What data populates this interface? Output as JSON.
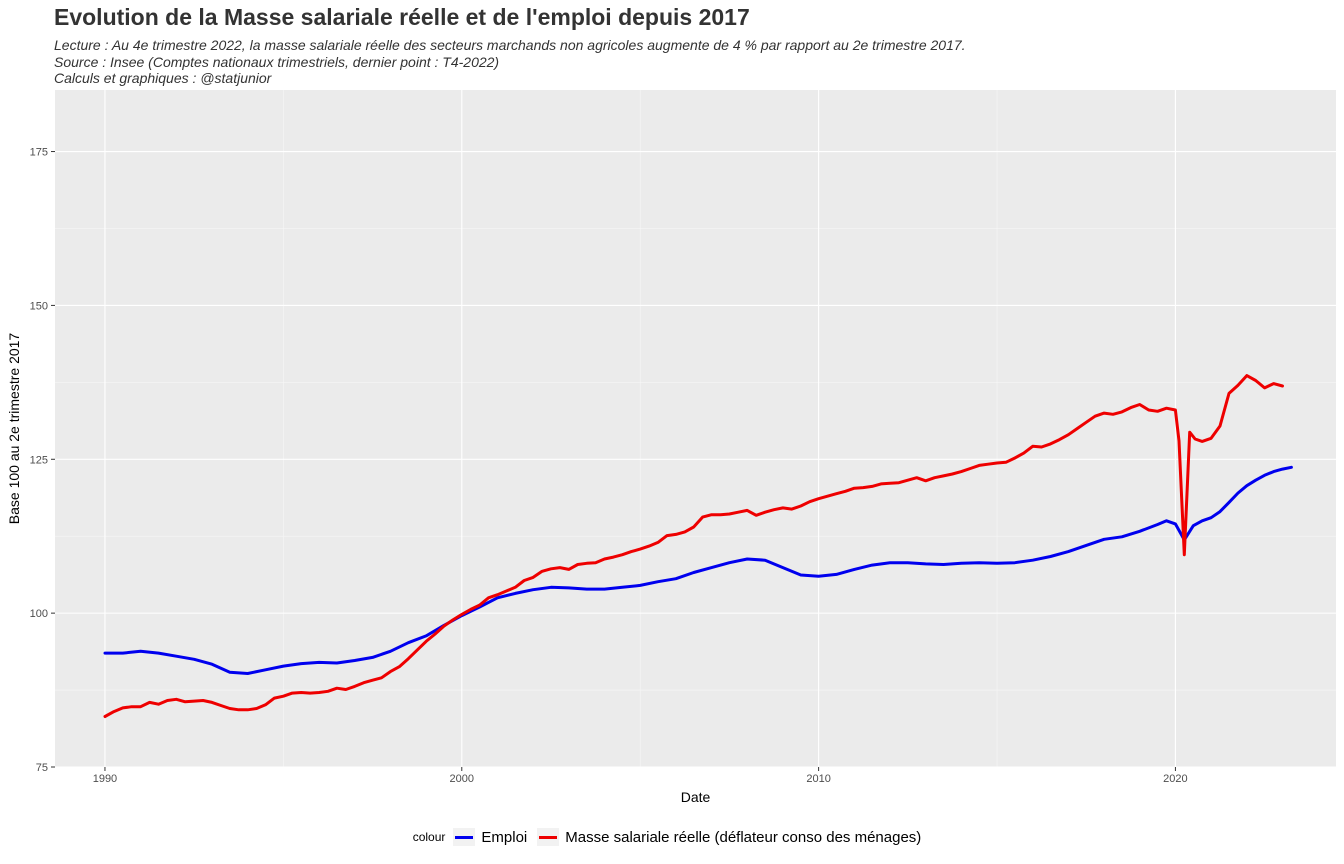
{
  "header": {
    "title": "Evolution de la Masse salariale réelle et de l'emploi depuis 2017",
    "lines": [
      "Lecture : Au 4e trimestre 2022, la masse salariale réelle des secteurs marchands non agricoles augmente de 4 % par rapport au 2e trimestre 2017.",
      "Source : Insee (Comptes nationaux trimestriels, dernier point : T4-2022)",
      "Calculs et graphiques : @statjunior"
    ]
  },
  "chart_data": {
    "type": "line",
    "xlabel": "Date",
    "ylabel": "Base 100 au 2e trimestre 2017",
    "xlim": [
      1988.6,
      2024.5
    ],
    "ylim": [
      75,
      185
    ],
    "x_ticks": [
      1990,
      2000,
      2010,
      2020
    ],
    "y_ticks": [
      75,
      100,
      125,
      150,
      175
    ],
    "grid": true,
    "legend_position": "bottom",
    "legend_title": "colour",
    "series": [
      {
        "name": "Emploi",
        "color": "#0000ee",
        "points": [
          [
            1990.0,
            93.5
          ],
          [
            1990.5,
            93.5
          ],
          [
            1991.0,
            93.8
          ],
          [
            1991.5,
            93.5
          ],
          [
            1992.0,
            93.0
          ],
          [
            1992.5,
            92.5
          ],
          [
            1993.0,
            91.7
          ],
          [
            1993.5,
            90.4
          ],
          [
            1994.0,
            90.2
          ],
          [
            1994.5,
            90.8
          ],
          [
            1995.0,
            91.4
          ],
          [
            1995.5,
            91.8
          ],
          [
            1996.0,
            92.0
          ],
          [
            1996.5,
            91.9
          ],
          [
            1997.0,
            92.3
          ],
          [
            1997.5,
            92.8
          ],
          [
            1998.0,
            93.8
          ],
          [
            1998.5,
            95.2
          ],
          [
            1999.0,
            96.3
          ],
          [
            1999.5,
            98.0
          ],
          [
            2000.0,
            99.6
          ],
          [
            2000.5,
            101.0
          ],
          [
            2001.0,
            102.5
          ],
          [
            2001.5,
            103.2
          ],
          [
            2002.0,
            103.8
          ],
          [
            2002.5,
            104.2
          ],
          [
            2003.0,
            104.1
          ],
          [
            2003.5,
            103.9
          ],
          [
            2004.0,
            103.9
          ],
          [
            2004.5,
            104.2
          ],
          [
            2005.0,
            104.5
          ],
          [
            2005.5,
            105.1
          ],
          [
            2006.0,
            105.6
          ],
          [
            2006.5,
            106.6
          ],
          [
            2007.0,
            107.4
          ],
          [
            2007.5,
            108.2
          ],
          [
            2008.0,
            108.8
          ],
          [
            2008.5,
            108.6
          ],
          [
            2009.0,
            107.4
          ],
          [
            2009.5,
            106.2
          ],
          [
            2010.0,
            106.0
          ],
          [
            2010.5,
            106.3
          ],
          [
            2011.0,
            107.1
          ],
          [
            2011.5,
            107.8
          ],
          [
            2012.0,
            108.2
          ],
          [
            2012.5,
            108.2
          ],
          [
            2013.0,
            108.0
          ],
          [
            2013.5,
            107.9
          ],
          [
            2014.0,
            108.1
          ],
          [
            2014.5,
            108.2
          ],
          [
            2015.0,
            108.1
          ],
          [
            2015.5,
            108.2
          ],
          [
            2016.0,
            108.6
          ],
          [
            2016.5,
            109.2
          ],
          [
            2017.0,
            110.0
          ],
          [
            2017.5,
            111.0
          ],
          [
            2018.0,
            112.0
          ],
          [
            2018.5,
            112.4
          ],
          [
            2019.0,
            113.3
          ],
          [
            2019.5,
            114.4
          ],
          [
            2019.75,
            115.0
          ],
          [
            2020.0,
            114.5
          ],
          [
            2020.25,
            111.9
          ],
          [
            2020.5,
            114.2
          ],
          [
            2020.75,
            115.0
          ],
          [
            2021.0,
            115.5
          ],
          [
            2021.25,
            116.5
          ],
          [
            2021.5,
            118.0
          ],
          [
            2021.75,
            119.5
          ],
          [
            2022.0,
            120.7
          ],
          [
            2022.25,
            121.6
          ],
          [
            2022.5,
            122.4
          ],
          [
            2022.75,
            123.0
          ],
          [
            2023.0,
            123.4
          ],
          [
            2023.25,
            123.7
          ]
        ]
      },
      {
        "name": "Masse salariale réelle (déflateur conso des ménages)",
        "color": "#ee0000",
        "points": [
          [
            1990.0,
            83.2
          ],
          [
            1990.25,
            84.0
          ],
          [
            1990.5,
            84.6
          ],
          [
            1990.75,
            84.8
          ],
          [
            1991.0,
            84.8
          ],
          [
            1991.25,
            85.5
          ],
          [
            1991.5,
            85.2
          ],
          [
            1991.75,
            85.8
          ],
          [
            1992.0,
            86.0
          ],
          [
            1992.25,
            85.6
          ],
          [
            1992.5,
            85.7
          ],
          [
            1992.75,
            85.8
          ],
          [
            1993.0,
            85.5
          ],
          [
            1993.25,
            85.0
          ],
          [
            1993.5,
            84.5
          ],
          [
            1993.75,
            84.3
          ],
          [
            1994.0,
            84.3
          ],
          [
            1994.25,
            84.5
          ],
          [
            1994.5,
            85.1
          ],
          [
            1994.75,
            86.2
          ],
          [
            1995.0,
            86.5
          ],
          [
            1995.25,
            87.0
          ],
          [
            1995.5,
            87.1
          ],
          [
            1995.75,
            87.0
          ],
          [
            1996.0,
            87.1
          ],
          [
            1996.25,
            87.3
          ],
          [
            1996.5,
            87.8
          ],
          [
            1996.75,
            87.6
          ],
          [
            1997.0,
            88.1
          ],
          [
            1997.25,
            88.7
          ],
          [
            1997.5,
            89.1
          ],
          [
            1997.75,
            89.5
          ],
          [
            1998.0,
            90.5
          ],
          [
            1998.25,
            91.3
          ],
          [
            1998.5,
            92.6
          ],
          [
            1998.75,
            94.0
          ],
          [
            1999.0,
            95.4
          ],
          [
            1999.25,
            96.6
          ],
          [
            1999.5,
            97.9
          ],
          [
            1999.75,
            98.9
          ],
          [
            2000.0,
            99.8
          ],
          [
            2000.25,
            100.6
          ],
          [
            2000.5,
            101.3
          ],
          [
            2000.75,
            102.5
          ],
          [
            2001.0,
            103.0
          ],
          [
            2001.25,
            103.6
          ],
          [
            2001.5,
            104.2
          ],
          [
            2001.75,
            105.3
          ],
          [
            2002.0,
            105.8
          ],
          [
            2002.25,
            106.8
          ],
          [
            2002.5,
            107.2
          ],
          [
            2002.75,
            107.4
          ],
          [
            2003.0,
            107.1
          ],
          [
            2003.25,
            107.9
          ],
          [
            2003.5,
            108.1
          ],
          [
            2003.75,
            108.2
          ],
          [
            2004.0,
            108.8
          ],
          [
            2004.25,
            109.1
          ],
          [
            2004.5,
            109.5
          ],
          [
            2004.75,
            110.0
          ],
          [
            2005.0,
            110.4
          ],
          [
            2005.25,
            110.9
          ],
          [
            2005.5,
            111.5
          ],
          [
            2005.75,
            112.6
          ],
          [
            2006.0,
            112.8
          ],
          [
            2006.25,
            113.2
          ],
          [
            2006.5,
            114.0
          ],
          [
            2006.75,
            115.6
          ],
          [
            2007.0,
            116.0
          ],
          [
            2007.25,
            116.0
          ],
          [
            2007.5,
            116.1
          ],
          [
            2007.75,
            116.4
          ],
          [
            2008.0,
            116.7
          ],
          [
            2008.25,
            115.9
          ],
          [
            2008.5,
            116.4
          ],
          [
            2008.75,
            116.8
          ],
          [
            2009.0,
            117.1
          ],
          [
            2009.25,
            116.9
          ],
          [
            2009.5,
            117.4
          ],
          [
            2009.75,
            118.1
          ],
          [
            2010.0,
            118.6
          ],
          [
            2010.25,
            119.0
          ],
          [
            2010.5,
            119.4
          ],
          [
            2010.75,
            119.8
          ],
          [
            2011.0,
            120.3
          ],
          [
            2011.25,
            120.4
          ],
          [
            2011.5,
            120.6
          ],
          [
            2011.75,
            121.0
          ],
          [
            2012.0,
            121.1
          ],
          [
            2012.25,
            121.2
          ],
          [
            2012.5,
            121.6
          ],
          [
            2012.75,
            122.0
          ],
          [
            2013.0,
            121.5
          ],
          [
            2013.25,
            122.0
          ],
          [
            2013.5,
            122.3
          ],
          [
            2013.75,
            122.6
          ],
          [
            2014.0,
            123.0
          ],
          [
            2014.25,
            123.5
          ],
          [
            2014.5,
            124.0
          ],
          [
            2014.75,
            124.2
          ],
          [
            2015.0,
            124.4
          ],
          [
            2015.25,
            124.5
          ],
          [
            2015.5,
            125.2
          ],
          [
            2015.75,
            126.0
          ],
          [
            2016.0,
            127.1
          ],
          [
            2016.25,
            127.0
          ],
          [
            2016.5,
            127.5
          ],
          [
            2016.75,
            128.2
          ],
          [
            2017.0,
            129.0
          ],
          [
            2017.25,
            130.0
          ],
          [
            2017.5,
            131.0
          ],
          [
            2017.75,
            132.0
          ],
          [
            2018.0,
            132.5
          ],
          [
            2018.25,
            132.3
          ],
          [
            2018.5,
            132.7
          ],
          [
            2018.75,
            133.4
          ],
          [
            2019.0,
            133.9
          ],
          [
            2019.25,
            133.0
          ],
          [
            2019.5,
            132.8
          ],
          [
            2019.75,
            133.3
          ],
          [
            2020.0,
            133.0
          ],
          [
            2020.1,
            128.0
          ],
          [
            2020.25,
            109.5
          ],
          [
            2020.4,
            129.4
          ],
          [
            2020.55,
            128.3
          ],
          [
            2020.75,
            127.9
          ],
          [
            2021.0,
            128.4
          ],
          [
            2021.25,
            130.4
          ],
          [
            2021.5,
            135.7
          ],
          [
            2021.75,
            137.0
          ],
          [
            2022.0,
            138.6
          ],
          [
            2022.25,
            137.8
          ],
          [
            2022.5,
            136.6
          ],
          [
            2022.75,
            137.3
          ],
          [
            2023.0,
            136.9
          ]
        ]
      }
    ]
  }
}
